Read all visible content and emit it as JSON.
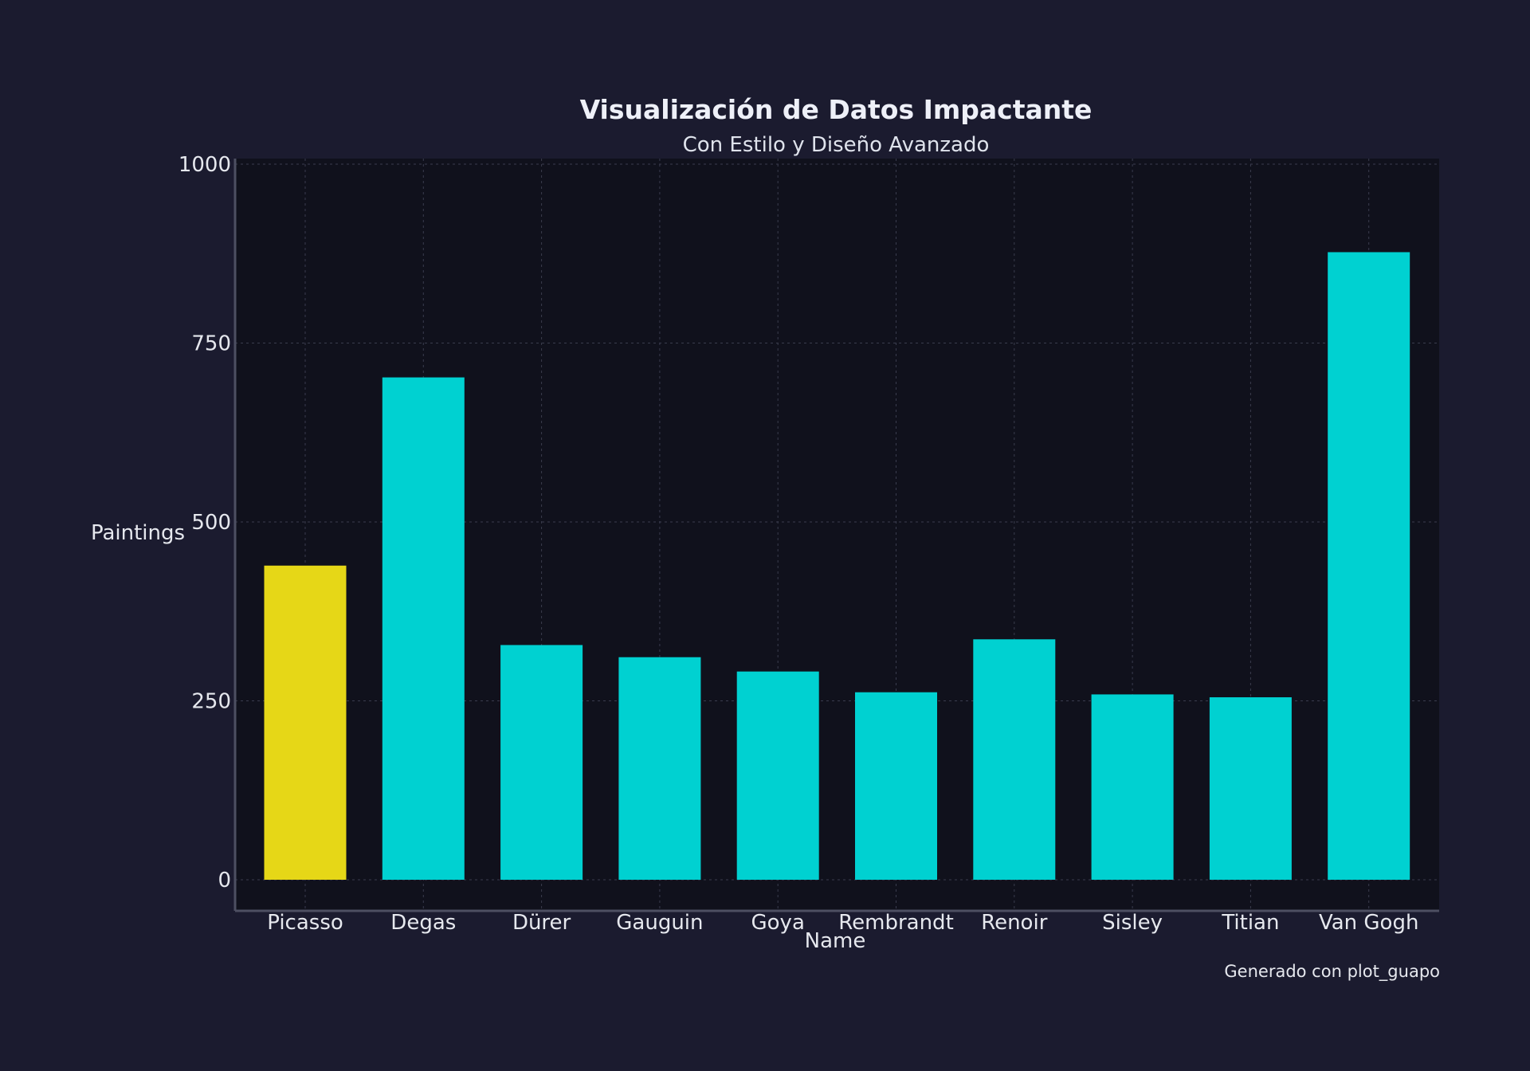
{
  "chart_data": {
    "type": "bar",
    "title": "Visualización de Datos Impactante",
    "subtitle": "Con Estilo y Diseño Avanzado",
    "xlabel": "Name",
    "ylabel": "Paintings",
    "categories": [
      "Picasso",
      "Degas",
      "Dürer",
      "Gauguin",
      "Goya",
      "Rembrandt",
      "Renoir",
      "Sisley",
      "Titian",
      "Van Gogh"
    ],
    "values": [
      439,
      702,
      328,
      311,
      291,
      262,
      336,
      259,
      255,
      877
    ],
    "highlight_index": 0,
    "ylim": [
      0,
      1000
    ],
    "yticks": [
      0,
      250,
      500,
      750,
      1000
    ],
    "grid": true,
    "caption": "Generado con plot_guapo"
  },
  "colors": {
    "background": "#1b1b2f",
    "plot_background": "#10111c",
    "bar": "#00d1d1",
    "highlight": "#e6d717",
    "grid": "#3a3c4e",
    "axis": "#4d4f62",
    "text": "#e6e8ee"
  }
}
